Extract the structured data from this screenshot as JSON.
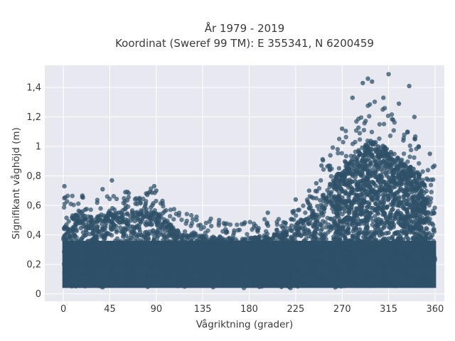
{
  "chart_data": {
    "type": "scatter",
    "title_line1": "År 1979 - 2019",
    "title_line2": "Koordinat (Sweref 99 TM): E 355341, N 6200459",
    "xlabel": "Vågriktning (grader)",
    "ylabel": "Signifikant våghöjd (m)",
    "xlim": [
      -18,
      369
    ],
    "ylim": [
      -0.05,
      1.55
    ],
    "xticks": [
      0,
      45,
      90,
      135,
      180,
      225,
      270,
      315,
      360
    ],
    "xtick_labels": [
      "0",
      "45",
      "90",
      "135",
      "180",
      "225",
      "270",
      "315",
      "360"
    ],
    "yticks": [
      0,
      0.2,
      0.4,
      0.6,
      0.8,
      1.0,
      1.2,
      1.4
    ],
    "ytick_labels": [
      "0",
      "0,2",
      "0,4",
      "0,6",
      "0,8",
      "1",
      "1,2",
      "1,4"
    ],
    "grid": true,
    "point_color": "#2e5068",
    "background_color": "#e8e8f0",
    "envelope": {
      "direction": [
        0,
        15,
        30,
        45,
        60,
        75,
        85,
        95,
        110,
        135,
        160,
        180,
        200,
        220,
        240,
        255,
        270,
        285,
        300,
        315,
        330,
        345,
        360
      ],
      "max_height": [
        0.55,
        0.56,
        0.52,
        0.57,
        0.58,
        0.55,
        0.6,
        0.52,
        0.44,
        0.4,
        0.38,
        0.38,
        0.39,
        0.45,
        0.55,
        0.72,
        0.85,
        0.97,
        1.05,
        0.98,
        0.9,
        0.82,
        0.6
      ]
    },
    "outliers": [
      {
        "x": 1,
        "y": 0.73
      },
      {
        "x": 47,
        "y": 0.77
      },
      {
        "x": 38,
        "y": 0.71
      },
      {
        "x": 88,
        "y": 0.73
      },
      {
        "x": 90,
        "y": 0.7
      },
      {
        "x": 60,
        "y": 0.69
      },
      {
        "x": 225,
        "y": 0.64
      },
      {
        "x": 198,
        "y": 0.55
      },
      {
        "x": 290,
        "y": 1.43
      },
      {
        "x": 295,
        "y": 1.46
      },
      {
        "x": 299,
        "y": 1.44
      },
      {
        "x": 315,
        "y": 1.49
      },
      {
        "x": 335,
        "y": 1.41
      },
      {
        "x": 310,
        "y": 1.33
      },
      {
        "x": 325,
        "y": 1.29
      },
      {
        "x": 280,
        "y": 1.33
      },
      {
        "x": 270,
        "y": 1.12
      },
      {
        "x": 340,
        "y": 1.2
      },
      {
        "x": 355,
        "y": 0.95
      },
      {
        "x": 358,
        "y": 0.86
      },
      {
        "x": 250,
        "y": 0.87
      },
      {
        "x": 245,
        "y": 0.75
      },
      {
        "x": 238,
        "y": 0.7
      }
    ]
  }
}
